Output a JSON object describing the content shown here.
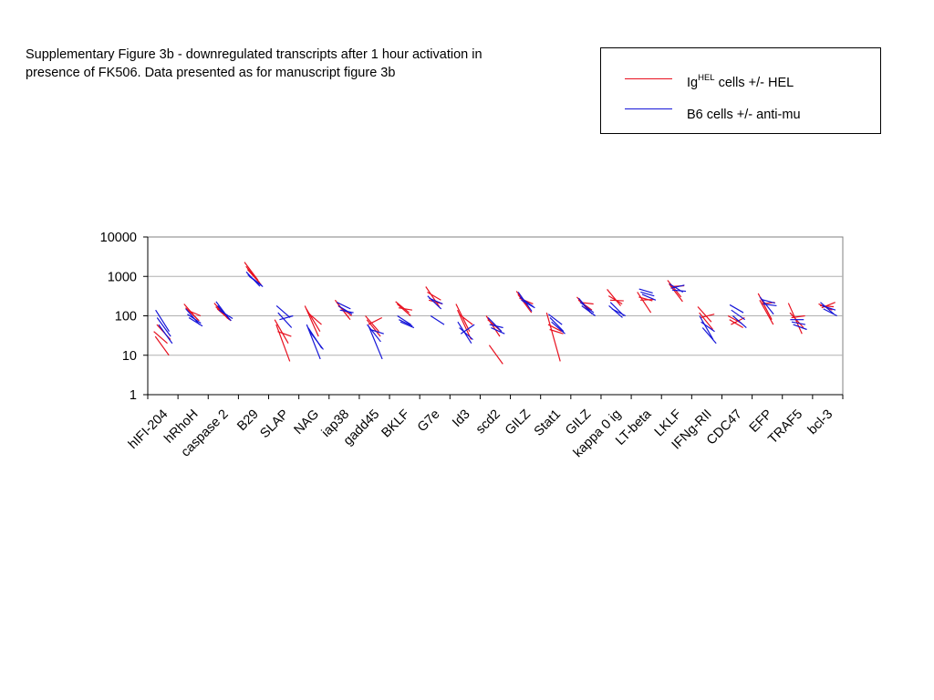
{
  "caption": {
    "line1": "Supplementary Figure 3b - downregulated transcripts after 1 hour activation in",
    "line2": "presence of FK506. Data presented as for manuscript figure 3b"
  },
  "legend": {
    "hel_prefix": "Ig",
    "hel_sup": "HEL",
    "hel_suffix": " cells +/- HEL",
    "b6_label": "B6 cells +/- anti-mu"
  },
  "colors": {
    "hel": "#e8101f",
    "b6": "#1515d8",
    "grid": "#b0b0b0",
    "plot_border": "#808080"
  },
  "chart_data": {
    "type": "line",
    "title": "",
    "xlabel": "",
    "ylabel": "",
    "yscale": "log",
    "ylim": [
      1,
      10000
    ],
    "yticks": [
      1,
      10,
      100,
      1000,
      10000
    ],
    "ytick_labels": [
      "1",
      "10",
      "100",
      "1000",
      "10000"
    ],
    "grid": "horizontal",
    "legend_position": "top-right",
    "categories": [
      "hIFI-204",
      "hRhoH",
      "caspase 2",
      "B29",
      "SLAP",
      "NAG",
      "iap38",
      "gadd45",
      "BKLF",
      "G7e",
      "Id3",
      "scd2",
      "GILZ",
      "Stat1",
      "GILZ",
      "kappa 0 ig",
      "LT-beta",
      "LKLF",
      "IFNg-RII",
      "CDC47",
      "EFP",
      "TRAF5",
      "bcl-3"
    ],
    "series": [
      {
        "name": "IgHEL cells +/- HEL",
        "color": "#e8101f",
        "replicates": [
          [
            [
              40,
              20
            ],
            [
              200,
              80
            ],
            [
              210,
              85
            ],
            [
              2300,
              800
            ],
            [
              80,
              20
            ],
            [
              180,
              30
            ],
            [
              250,
              90
            ],
            [
              100,
              40
            ],
            [
              230,
              120
            ],
            [
              550,
              170
            ],
            [
              200,
              40
            ],
            [
              100,
              30
            ],
            [
              420,
              150
            ],
            [
              120,
              7
            ],
            [
              300,
              120
            ],
            [
              470,
              180
            ],
            [
              400,
              120
            ],
            [
              800,
              300
            ],
            [
              170,
              70
            ],
            [
              100,
              65
            ],
            [
              370,
              80
            ],
            [
              210,
              35
            ],
            [
              200,
              140
            ]
          ],
          [
            [
              30,
              10
            ],
            [
              160,
              75
            ],
            [
              170,
              80
            ],
            [
              1800,
              700
            ],
            [
              60,
              7
            ],
            [
              150,
              40
            ],
            [
              220,
              80
            ],
            [
              80,
              30
            ],
            [
              200,
              100
            ],
            [
              400,
              250
            ],
            [
              140,
              25
            ],
            [
              80,
              40
            ],
            [
              350,
              120
            ],
            [
              60,
              40
            ],
            [
              250,
              140
            ],
            [
              320,
              200
            ],
            [
              300,
              240
            ],
            [
              650,
              230
            ],
            [
              120,
              45
            ],
            [
              80,
              50
            ],
            [
              250,
              60
            ],
            [
              120,
              50
            ],
            [
              180,
              170
            ]
          ],
          [
            [
              60,
              25
            ],
            [
              140,
              100
            ],
            [
              150,
              75
            ],
            [
              1500,
              620
            ],
            [
              40,
              30
            ],
            [
              120,
              60
            ],
            [
              180,
              100
            ],
            [
              60,
              90
            ],
            [
              160,
              140
            ],
            [
              250,
              200
            ],
            [
              110,
              60
            ],
            [
              18,
              6
            ],
            [
              280,
              200
            ],
            [
              45,
              35
            ],
            [
              220,
              200
            ],
            [
              250,
              240
            ],
            [
              250,
              260
            ],
            [
              550,
              580
            ],
            [
              90,
              110
            ],
            [
              60,
              90
            ],
            [
              200,
              220
            ],
            [
              90,
              100
            ],
            [
              160,
              220
            ]
          ]
        ]
      },
      {
        "name": "B6 cells +/- anti-mu",
        "color": "#1515d8",
        "replicates": [
          [
            [
              140,
              40
            ],
            [
              150,
              60
            ],
            [
              230,
              80
            ],
            [
              1300,
              560
            ],
            [
              180,
              90
            ],
            [
              60,
              8
            ],
            [
              220,
              150
            ],
            [
              60,
              22
            ],
            [
              100,
              60
            ],
            [
              320,
              150
            ],
            [
              70,
              20
            ],
            [
              90,
              40
            ],
            [
              400,
              130
            ],
            [
              110,
              60
            ],
            [
              280,
              110
            ],
            [
              180,
              90
            ],
            [
              480,
              380
            ],
            [
              650,
              400
            ],
            [
              100,
              25
            ],
            [
              190,
              120
            ],
            [
              300,
              110
            ],
            [
              80,
              80
            ],
            [
              220,
              110
            ]
          ],
          [
            [
              90,
              30
            ],
            [
              110,
              65
            ],
            [
              180,
              75
            ],
            [
              1100,
              600
            ],
            [
              120,
              50
            ],
            [
              50,
              15
            ],
            [
              180,
              110
            ],
            [
              55,
              8
            ],
            [
              80,
              55
            ],
            [
              280,
              200
            ],
            [
              50,
              25
            ],
            [
              60,
              50
            ],
            [
              300,
              170
            ],
            [
              90,
              40
            ],
            [
              220,
              120
            ],
            [
              220,
              100
            ],
            [
              400,
              320
            ],
            [
              500,
              600
            ],
            [
              70,
              40
            ],
            [
              140,
              80
            ],
            [
              260,
              210
            ],
            [
              70,
              60
            ],
            [
              180,
              140
            ]
          ],
          [
            [
              60,
              20
            ],
            [
              90,
              55
            ],
            [
              140,
              85
            ],
            [
              1000,
              550
            ],
            [
              80,
              100
            ],
            [
              40,
              14
            ],
            [
              140,
              120
            ],
            [
              45,
              35
            ],
            [
              70,
              50
            ],
            [
              100,
              60
            ],
            [
              35,
              60
            ],
            [
              50,
              35
            ],
            [
              250,
              160
            ],
            [
              70,
              35
            ],
            [
              180,
              100
            ],
            [
              150,
              100
            ],
            [
              350,
              250
            ],
            [
              450,
              420
            ],
            [
              50,
              20
            ],
            [
              100,
              50
            ],
            [
              200,
              180
            ],
            [
              60,
              45
            ],
            [
              150,
              100
            ]
          ]
        ]
      }
    ]
  }
}
